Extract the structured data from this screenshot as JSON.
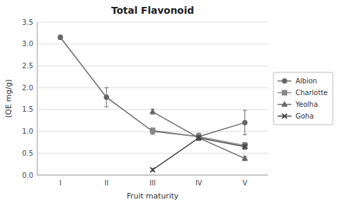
{
  "chart_data": {
    "type": "line",
    "title": "Total Flavonoid",
    "x_label": "Fruit maturity",
    "y_label": "(QE mg/g)",
    "categories": [
      "I",
      "II",
      "III",
      "IV",
      "V"
    ],
    "ylim": [
      0,
      3.5
    ],
    "yticks": [
      {
        "value": 0,
        "label": "0.0"
      },
      0.5,
      {
        "value": 1.0,
        "label": "1.0"
      },
      1.5,
      {
        "value": 2.0,
        "label": "2.0"
      },
      2.5,
      {
        "value": 3.0,
        "label": "3.0"
      },
      3.5
    ],
    "grid": true,
    "legend": "center right",
    "series": [
      {
        "name": "Albion",
        "color": "#666666",
        "marker": "circle",
        "values": [
          3.15,
          1.78,
          1.0,
          0.88,
          1.2
        ],
        "yerr": [
          0.05,
          0.22,
          0.07,
          0.08,
          0.28
        ]
      },
      {
        "name": "Charlotte",
        "color": "#888888",
        "marker": "square",
        "values": [
          null,
          null,
          1.02,
          0.88,
          0.68
        ],
        "yerr": [
          null,
          null,
          0.06,
          0.07,
          0.07
        ]
      },
      {
        "name": "Yeolha",
        "color": "#666666",
        "marker": "triangle",
        "values": [
          null,
          null,
          1.45,
          0.85,
          0.38
        ],
        "yerr": [
          null,
          null,
          0.06,
          0.06,
          0.05
        ]
      },
      {
        "name": "Goha",
        "color": "#444444",
        "marker": "x",
        "values": [
          null,
          null,
          0.12,
          0.85,
          0.65
        ],
        "yerr": [
          null,
          null,
          0.03,
          0.05,
          0.06
        ]
      }
    ]
  }
}
